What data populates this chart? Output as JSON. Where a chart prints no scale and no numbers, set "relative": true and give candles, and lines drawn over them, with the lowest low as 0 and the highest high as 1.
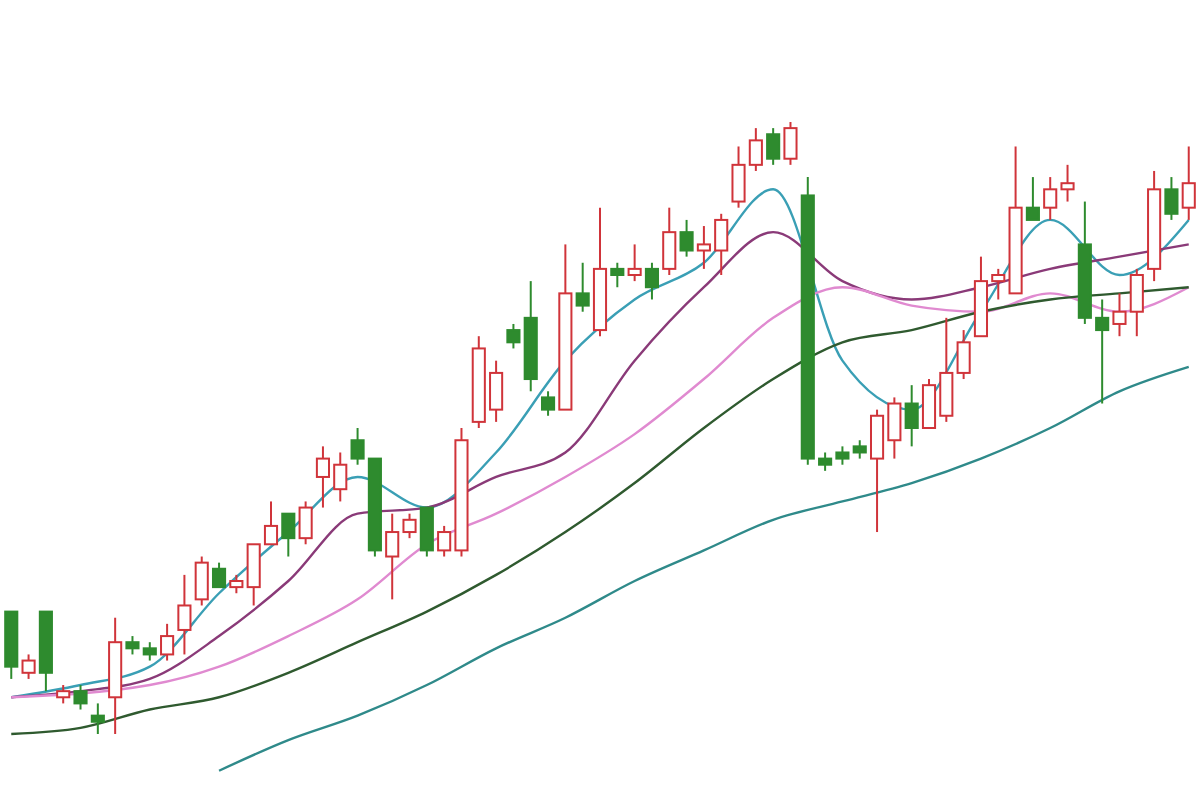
{
  "chart_data": {
    "type": "candlestick",
    "relative": true,
    "categories": [
      null,
      null,
      null,
      null,
      null,
      null,
      null,
      null,
      null,
      null,
      null,
      null,
      null,
      null,
      null,
      null,
      null,
      null,
      null,
      null,
      null,
      null,
      null,
      null,
      null,
      null,
      null,
      null,
      null,
      null,
      null,
      null,
      null,
      null,
      null,
      null,
      null,
      null,
      null,
      null,
      null,
      null,
      null,
      null,
      null,
      null,
      null,
      null,
      null,
      null,
      null,
      null,
      null,
      null,
      null,
      null,
      null,
      null,
      null,
      null,
      null,
      null,
      null,
      null,
      null,
      null,
      null,
      null,
      null
    ],
    "ohlc": [
      [
        0.2,
        0.2,
        0.09,
        0.11
      ],
      [
        0.1,
        0.13,
        0.09,
        0.12
      ],
      [
        0.2,
        0.2,
        0.07,
        0.1
      ],
      [
        0.06,
        0.08,
        0.05,
        0.07
      ],
      [
        0.07,
        0.08,
        0.04,
        0.05
      ],
      [
        0.03,
        0.05,
        0,
        0.02
      ],
      [
        0.06,
        0.19,
        0,
        0.15
      ],
      [
        0.15,
        0.16,
        0.13,
        0.14
      ],
      [
        0.14,
        0.15,
        0.12,
        0.13
      ],
      [
        0.13,
        0.18,
        0.12,
        0.16
      ],
      [
        0.17,
        0.26,
        0.13,
        0.21
      ],
      [
        0.22,
        0.29,
        0.21,
        0.28
      ],
      [
        0.27,
        0.28,
        0.24,
        0.24
      ],
      [
        0.24,
        0.26,
        0.23,
        0.25
      ],
      [
        0.24,
        0.31,
        0.21,
        0.31
      ],
      [
        0.31,
        0.38,
        0.31,
        0.34
      ],
      [
        0.36,
        0.36,
        0.29,
        0.32
      ],
      [
        0.32,
        0.38,
        0.31,
        0.37
      ],
      [
        0.42,
        0.47,
        0.37,
        0.45
      ],
      [
        0.4,
        0.46,
        0.38,
        0.44
      ],
      [
        0.48,
        0.5,
        0.44,
        0.45
      ],
      [
        0.45,
        0.45,
        0.29,
        0.3
      ],
      [
        0.29,
        0.36,
        0.22,
        0.33
      ],
      [
        0.33,
        0.36,
        0.32,
        0.35
      ],
      [
        0.37,
        0.37,
        0.29,
        0.3
      ],
      [
        0.3,
        0.34,
        0.29,
        0.33
      ],
      [
        0.3,
        0.5,
        0.29,
        0.48
      ],
      [
        0.51,
        0.65,
        0.5,
        0.63
      ],
      [
        0.53,
        0.61,
        0.51,
        0.59
      ],
      [
        0.66,
        0.67,
        0.63,
        0.64
      ],
      [
        0.68,
        0.74,
        0.56,
        0.58
      ],
      [
        0.55,
        0.56,
        0.52,
        0.53
      ],
      [
        0.53,
        0.8,
        0.53,
        0.72
      ],
      [
        0.72,
        0.77,
        0.69,
        0.7
      ],
      [
        0.66,
        0.86,
        0.65,
        0.76
      ],
      [
        0.76,
        0.77,
        0.73,
        0.75
      ],
      [
        0.75,
        0.8,
        0.74,
        0.76
      ],
      [
        0.76,
        0.77,
        0.71,
        0.73
      ],
      [
        0.76,
        0.86,
        0.75,
        0.82
      ],
      [
        0.82,
        0.84,
        0.78,
        0.79
      ],
      [
        0.79,
        0.83,
        0.76,
        0.8
      ],
      [
        0.79,
        0.85,
        0.75,
        0.84
      ],
      [
        0.87,
        0.96,
        0.86,
        0.93
      ],
      [
        0.93,
        0.99,
        0.92,
        0.97
      ],
      [
        0.98,
        0.99,
        0.93,
        0.94
      ],
      [
        0.94,
        1,
        0.93,
        0.99
      ],
      [
        0.88,
        0.91,
        0.44,
        0.45
      ],
      [
        0.45,
        0.46,
        0.43,
        0.44
      ],
      [
        0.46,
        0.47,
        0.44,
        0.45
      ],
      [
        0.47,
        0.48,
        0.45,
        0.46
      ],
      [
        0.45,
        0.53,
        0.33,
        0.52
      ],
      [
        0.48,
        0.55,
        0.45,
        0.54
      ],
      [
        0.54,
        0.57,
        0.47,
        0.5
      ],
      [
        0.5,
        0.58,
        0.5,
        0.57
      ],
      [
        0.52,
        0.68,
        0.51,
        0.59
      ],
      [
        0.59,
        0.66,
        0.58,
        0.64
      ],
      [
        0.65,
        0.78,
        0.65,
        0.74
      ],
      [
        0.74,
        0.76,
        0.71,
        0.75
      ],
      [
        0.72,
        0.96,
        0.72,
        0.86
      ],
      [
        0.86,
        0.91,
        0.84,
        0.84
      ],
      [
        0.86,
        0.91,
        0.84,
        0.89
      ],
      [
        0.89,
        0.93,
        0.87,
        0.9
      ],
      [
        0.8,
        0.87,
        0.67,
        0.68
      ],
      [
        0.68,
        0.71,
        0.54,
        0.66
      ],
      [
        0.67,
        0.72,
        0.65,
        0.69
      ],
      [
        0.69,
        0.76,
        0.65,
        0.75
      ],
      [
        0.76,
        0.92,
        0.74,
        0.89
      ],
      [
        0.89,
        0.91,
        0.84,
        0.85
      ],
      [
        0.86,
        0.96,
        0.84,
        0.9
      ]
    ],
    "series": [
      {
        "type": "line",
        "color": "#3a9fb5",
        "values": [
          0.06,
          null,
          null,
          null,
          0.08,
          null,
          null,
          null,
          0.11,
          null,
          null,
          null,
          0.23,
          null,
          null,
          null,
          0.33,
          null,
          null,
          null,
          0.42,
          null,
          null,
          null,
          0.37,
          null,
          null,
          null,
          0.46,
          null,
          null,
          null,
          0.61,
          null,
          null,
          null,
          0.71,
          null,
          null,
          null,
          0.77,
          null,
          null,
          null,
          0.89,
          null,
          null,
          null,
          0.61,
          null,
          null,
          null,
          0.53,
          null,
          null,
          null,
          0.69,
          null,
          null,
          null,
          0.84,
          null,
          null,
          null,
          0.75,
          null,
          null,
          null,
          0.84
        ]
      },
      {
        "type": "line",
        "color": "#8a3a78",
        "values": [
          0.06,
          null,
          null,
          null,
          0.07,
          null,
          null,
          null,
          0.09,
          null,
          null,
          null,
          0.16,
          null,
          null,
          null,
          0.25,
          null,
          null,
          null,
          0.36,
          null,
          null,
          null,
          0.37,
          null,
          null,
          null,
          0.42,
          null,
          null,
          null,
          0.46,
          null,
          null,
          null,
          0.61,
          null,
          null,
          null,
          0.73,
          null,
          null,
          null,
          0.82,
          null,
          null,
          null,
          0.74,
          null,
          null,
          null,
          0.71,
          null,
          null,
          null,
          0.73,
          null,
          null,
          null,
          0.76,
          null,
          null,
          null,
          0.78,
          null,
          null,
          null,
          0.8
        ]
      },
      {
        "type": "line",
        "color": "#e08ad0",
        "values": [
          0.06,
          null,
          null,
          null,
          null,
          null,
          null,
          null,
          0.08,
          null,
          null,
          null,
          0.11,
          null,
          null,
          null,
          0.16,
          null,
          null,
          null,
          0.22,
          null,
          null,
          null,
          0.31,
          null,
          null,
          null,
          0.36,
          null,
          null,
          null,
          0.42,
          null,
          null,
          null,
          0.49,
          null,
          null,
          null,
          0.58,
          null,
          null,
          null,
          0.68,
          null,
          null,
          null,
          0.73,
          null,
          null,
          null,
          0.7,
          null,
          null,
          null,
          0.69,
          null,
          null,
          null,
          0.72,
          null,
          null,
          null,
          0.69,
          null,
          null,
          null,
          0.73
        ]
      },
      {
        "type": "line",
        "color": "#2f5a2f",
        "values": [
          0,
          null,
          null,
          null,
          0.01,
          null,
          null,
          null,
          0.04,
          null,
          null,
          null,
          0.06,
          null,
          null,
          null,
          0.1,
          null,
          null,
          null,
          0.15,
          null,
          null,
          null,
          0.2,
          null,
          null,
          null,
          0.26,
          null,
          null,
          null,
          0.33,
          null,
          null,
          null,
          0.41,
          null,
          null,
          null,
          0.5,
          null,
          null,
          null,
          0.58,
          null,
          null,
          null,
          0.64,
          null,
          null,
          null,
          0.66,
          null,
          null,
          null,
          0.69,
          null,
          null,
          null,
          0.71,
          null,
          null,
          null,
          0.72,
          null,
          null,
          null,
          0.73
        ]
      },
      {
        "type": "line",
        "color": "#2f8a8a",
        "values": [
          null,
          null,
          null,
          null,
          null,
          null,
          null,
          null,
          null,
          null,
          null,
          null,
          -0.06,
          null,
          null,
          null,
          -0.01,
          null,
          null,
          null,
          0.03,
          null,
          null,
          null,
          0.08,
          null,
          null,
          null,
          0.14,
          null,
          null,
          null,
          0.19,
          null,
          null,
          null,
          0.25,
          null,
          null,
          null,
          0.3,
          null,
          null,
          null,
          0.35,
          null,
          null,
          null,
          0.38,
          null,
          null,
          null,
          0.41,
          null,
          null,
          null,
          0.45,
          null,
          null,
          null,
          0.5,
          null,
          null,
          null,
          0.56,
          null,
          null,
          null,
          0.6
        ]
      }
    ]
  }
}
